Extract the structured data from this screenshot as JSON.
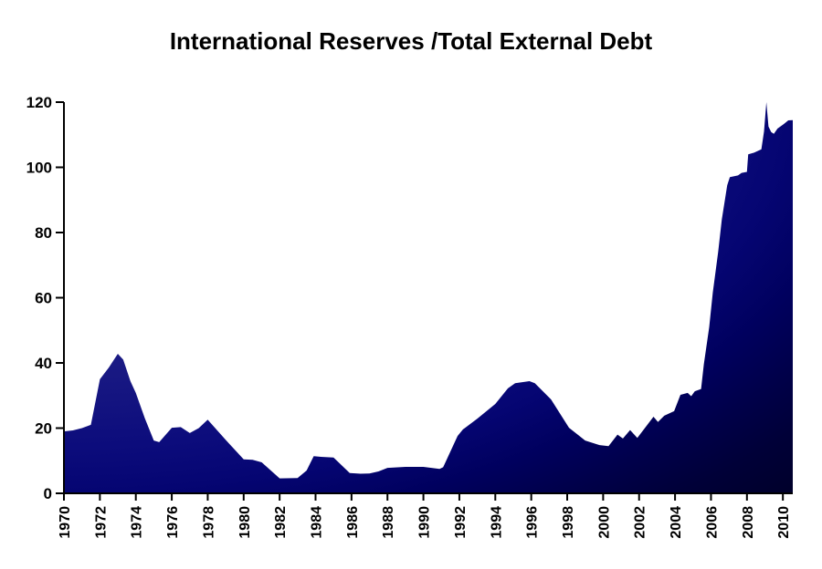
{
  "title": "International Reserves /Total External Debt",
  "chart_data": {
    "type": "area",
    "title": "International Reserves /Total External Debt",
    "xlabel": "",
    "ylabel": "",
    "x_range": [
      1970,
      2010.55
    ],
    "ylim": [
      0,
      120
    ],
    "y_ticks": [
      0,
      20,
      40,
      60,
      80,
      100,
      120
    ],
    "x_tick_years": [
      1970,
      1972,
      1974,
      1976,
      1978,
      1980,
      1982,
      1984,
      1986,
      1988,
      1990,
      1992,
      1994,
      1996,
      1998,
      2000,
      2002,
      2004,
      2006,
      2008,
      2010
    ],
    "x_tick_labels": [
      "1970",
      "1972",
      "1974",
      "1976",
      "1978",
      "1980",
      "1982",
      "1984",
      "1986",
      "1988",
      "1990",
      "1992",
      "1994",
      "1996",
      "1998",
      "2000",
      "2002",
      "2004",
      "2006",
      "2008",
      "2010"
    ],
    "grid": false,
    "legend": "none",
    "background_color": "#ffffff",
    "axis_color": "#000000",
    "fill_gradient": {
      "style": "radial-from-top-left-corner",
      "stops": [
        {
          "offset": 0.0,
          "color": "#2a2aa4"
        },
        {
          "offset": 0.35,
          "color": "#1e1e90"
        },
        {
          "offset": 0.46,
          "color": "#1b1b84"
        },
        {
          "offset": 0.62,
          "color": "#0c0c7c"
        },
        {
          "offset": 0.7,
          "color": "#050572"
        },
        {
          "offset": 0.78,
          "color": "#00005e"
        },
        {
          "offset": 0.85,
          "color": "#00004a"
        },
        {
          "offset": 0.92,
          "color": "#000038"
        },
        {
          "offset": 1.0,
          "color": "#00002a"
        }
      ]
    },
    "points": [
      [
        1970,
        19
      ],
      [
        1970.5,
        19.3
      ],
      [
        1971,
        20
      ],
      [
        1971.5,
        21
      ],
      [
        1972,
        35
      ],
      [
        1972.5,
        38.6
      ],
      [
        1973,
        42.8
      ],
      [
        1973.3,
        41
      ],
      [
        1973.7,
        34.4
      ],
      [
        1974,
        30.8
      ],
      [
        1974.5,
        23
      ],
      [
        1975,
        16.2
      ],
      [
        1975.3,
        15.7
      ],
      [
        1976,
        20.1
      ],
      [
        1976.5,
        20.3
      ],
      [
        1977,
        18.5
      ],
      [
        1977.5,
        20
      ],
      [
        1978,
        22.6
      ],
      [
        1979,
        16.4
      ],
      [
        1980,
        10.4
      ],
      [
        1980.5,
        10.3
      ],
      [
        1981,
        9.5
      ],
      [
        1982,
        4.6
      ],
      [
        1983,
        4.7
      ],
      [
        1983.5,
        7
      ],
      [
        1983.9,
        11.4
      ],
      [
        1984.3,
        11.2
      ],
      [
        1985,
        11
      ],
      [
        1985.9,
        6.2
      ],
      [
        1986.5,
        6
      ],
      [
        1987,
        6.1
      ],
      [
        1987.5,
        6.7
      ],
      [
        1988,
        7.8
      ],
      [
        1989,
        8.1
      ],
      [
        1990,
        8.1
      ],
      [
        1990.9,
        7.5
      ],
      [
        1991.1,
        8
      ],
      [
        1991.9,
        17.6
      ],
      [
        1992.2,
        19.6
      ],
      [
        1993,
        22.9
      ],
      [
        1994,
        27.4
      ],
      [
        1994.7,
        32.2
      ],
      [
        1995.1,
        33.8
      ],
      [
        1995.9,
        34.4
      ],
      [
        1996.2,
        33.8
      ],
      [
        1997.1,
        28.8
      ],
      [
        1998.1,
        20.1
      ],
      [
        1999,
        16.2
      ],
      [
        1999.8,
        14.8
      ],
      [
        2000.3,
        14.5
      ],
      [
        2000.8,
        18
      ],
      [
        2001.1,
        16.8
      ],
      [
        2001.5,
        19.4
      ],
      [
        2001.9,
        17
      ],
      [
        2002.8,
        23.5
      ],
      [
        2003.05,
        21.9
      ],
      [
        2003.4,
        23.8
      ],
      [
        2003.95,
        25.2
      ],
      [
        2004.3,
        30.2
      ],
      [
        2004.7,
        30.8
      ],
      [
        2004.9,
        29.8
      ],
      [
        2005.1,
        31.3
      ],
      [
        2005.45,
        32
      ],
      [
        2005.6,
        39.5
      ],
      [
        2005.9,
        51
      ],
      [
        2006.1,
        61.5
      ],
      [
        2006.4,
        74
      ],
      [
        2006.6,
        84
      ],
      [
        2006.9,
        94.5
      ],
      [
        2007.05,
        97
      ],
      [
        2007.5,
        97.5
      ],
      [
        2007.7,
        98.3
      ],
      [
        2008,
        98.6
      ],
      [
        2008.07,
        104
      ],
      [
        2008.4,
        104.5
      ],
      [
        2008.8,
        105.5
      ],
      [
        2008.95,
        111
      ],
      [
        2009.08,
        120
      ],
      [
        2009.2,
        112.5
      ],
      [
        2009.35,
        110.8
      ],
      [
        2009.5,
        110.3
      ],
      [
        2009.7,
        111.9
      ],
      [
        2010.05,
        113.3
      ],
      [
        2010.3,
        114.4
      ],
      [
        2010.55,
        114.5
      ]
    ]
  }
}
